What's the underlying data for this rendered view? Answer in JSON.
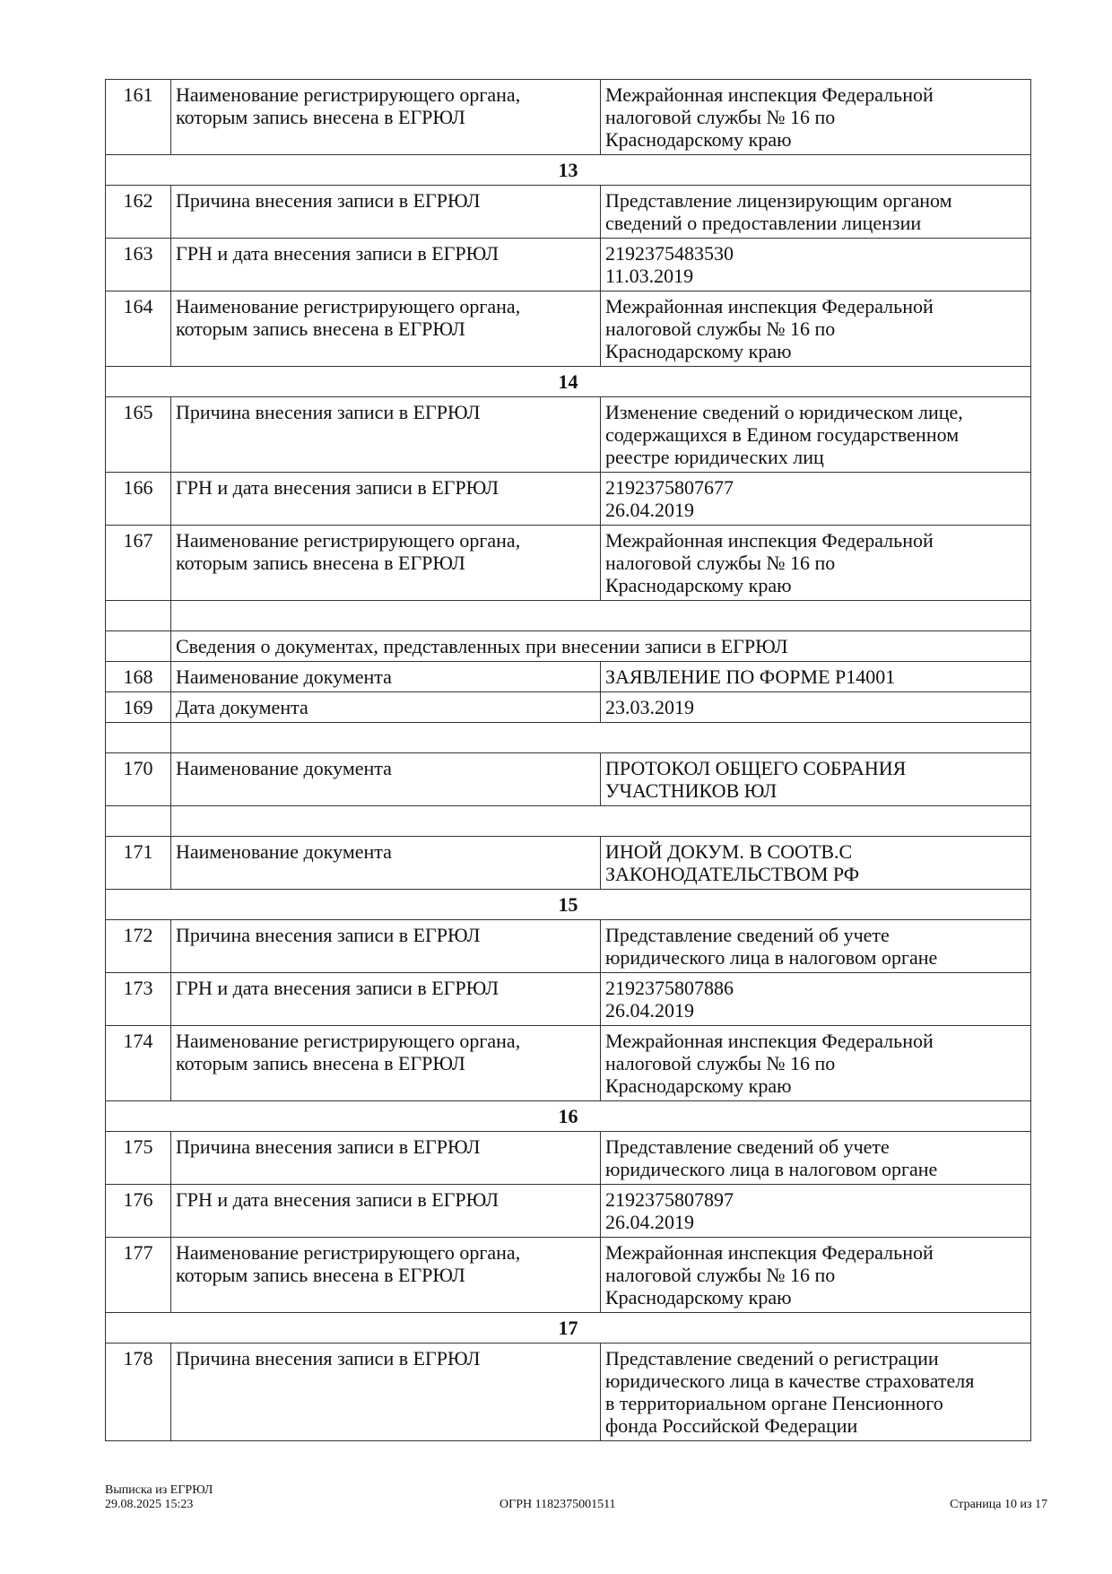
{
  "rows": [
    {
      "type": "row",
      "num": "161",
      "label": [
        "Наименование регистрирующего органа,",
        "которым запись внесена в ЕГРЮЛ"
      ],
      "value": [
        "Межрайонная инспекция Федеральной",
        "налоговой службы № 16 по",
        "Краснодарскому краю"
      ]
    },
    {
      "type": "section",
      "title": "13"
    },
    {
      "type": "row",
      "num": "162",
      "label": [
        "Причина внесения записи в ЕГРЮЛ"
      ],
      "value": [
        "Представление лицензирующим органом",
        "сведений о предоставлении лицензии"
      ]
    },
    {
      "type": "row",
      "num": "163",
      "label": [
        "ГРН и дата внесения записи в ЕГРЮЛ"
      ],
      "value": [
        "2192375483530",
        "11.03.2019"
      ]
    },
    {
      "type": "row",
      "num": "164",
      "label": [
        "Наименование регистрирующего органа,",
        "которым запись внесена в ЕГРЮЛ"
      ],
      "value": [
        "Межрайонная инспекция Федеральной",
        "налоговой службы № 16 по",
        "Краснодарскому краю"
      ]
    },
    {
      "type": "section",
      "title": "14"
    },
    {
      "type": "row",
      "num": "165",
      "label": [
        "Причина внесения записи в ЕГРЮЛ"
      ],
      "value": [
        "Изменение сведений о юридическом лице,",
        "содержащихся в Едином государственном",
        "реестре юридических лиц"
      ]
    },
    {
      "type": "row",
      "num": "166",
      "label": [
        "ГРН и дата внесения записи в ЕГРЮЛ"
      ],
      "value": [
        "2192375807677",
        "26.04.2019"
      ]
    },
    {
      "type": "row",
      "num": "167",
      "label": [
        "Наименование регистрирующего органа,",
        "которым запись внесена в ЕГРЮЛ"
      ],
      "value": [
        "Межрайонная инспекция Федеральной",
        "налоговой службы № 16 по",
        "Краснодарскому краю"
      ]
    },
    {
      "type": "blank"
    },
    {
      "type": "subheader",
      "title": "Сведения о документах, представленных при внесении записи в ЕГРЮЛ"
    },
    {
      "type": "row",
      "num": "168",
      "label": [
        "Наименование документа"
      ],
      "value": [
        "ЗАЯВЛЕНИЕ ПО ФОРМЕ Р14001"
      ]
    },
    {
      "type": "row",
      "num": "169",
      "label": [
        "Дата документа"
      ],
      "value": [
        "23.03.2019"
      ]
    },
    {
      "type": "blank"
    },
    {
      "type": "row",
      "num": "170",
      "label": [
        "Наименование документа"
      ],
      "value": [
        "ПРОТОКОЛ ОБЩЕГО СОБРАНИЯ",
        "УЧАСТНИКОВ ЮЛ"
      ]
    },
    {
      "type": "blank"
    },
    {
      "type": "row",
      "num": "171",
      "label": [
        "Наименование документа"
      ],
      "value": [
        "ИНОЙ ДОКУМ. В СООТВ.С",
        "ЗАКОНОДАТЕЛЬСТВОМ РФ"
      ]
    },
    {
      "type": "section",
      "title": "15"
    },
    {
      "type": "row",
      "num": "172",
      "label": [
        "Причина внесения записи в ЕГРЮЛ"
      ],
      "value": [
        "Представление сведений об учете",
        "юридического лица в налоговом органе"
      ]
    },
    {
      "type": "row",
      "num": "173",
      "label": [
        "ГРН и дата внесения записи в ЕГРЮЛ"
      ],
      "value": [
        "2192375807886",
        "26.04.2019"
      ]
    },
    {
      "type": "row",
      "num": "174",
      "label": [
        "Наименование регистрирующего органа,",
        "которым запись внесена в ЕГРЮЛ"
      ],
      "value": [
        "Межрайонная инспекция Федеральной",
        "налоговой службы № 16 по",
        "Краснодарскому краю"
      ]
    },
    {
      "type": "section",
      "title": "16"
    },
    {
      "type": "row",
      "num": "175",
      "label": [
        "Причина внесения записи в ЕГРЮЛ"
      ],
      "value": [
        "Представление сведений об учете",
        "юридического лица в налоговом органе"
      ]
    },
    {
      "type": "row",
      "num": "176",
      "label": [
        "ГРН и дата внесения записи в ЕГРЮЛ"
      ],
      "value": [
        "2192375807897",
        "26.04.2019"
      ]
    },
    {
      "type": "row",
      "num": "177",
      "label": [
        "Наименование регистрирующего органа,",
        "которым запись внесена в ЕГРЮЛ"
      ],
      "value": [
        "Межрайонная инспекция Федеральной",
        "налоговой службы № 16 по",
        "Краснодарскому краю"
      ]
    },
    {
      "type": "section",
      "title": "17"
    },
    {
      "type": "row",
      "num": "178",
      "label": [
        "Причина внесения записи в ЕГРЮЛ"
      ],
      "value": [
        "Представление сведений о регистрации",
        "юридического лица в качестве страхователя",
        "в территориальном органе Пенсионного",
        "фонда Российской Федерации"
      ]
    }
  ],
  "footer": {
    "doc_title": "Выписка из ЕГРЮЛ",
    "datetime": "29.08.2025 15:23",
    "ogrn": "ОГРН 1182375001511",
    "page": "Страница 10 из 17"
  }
}
